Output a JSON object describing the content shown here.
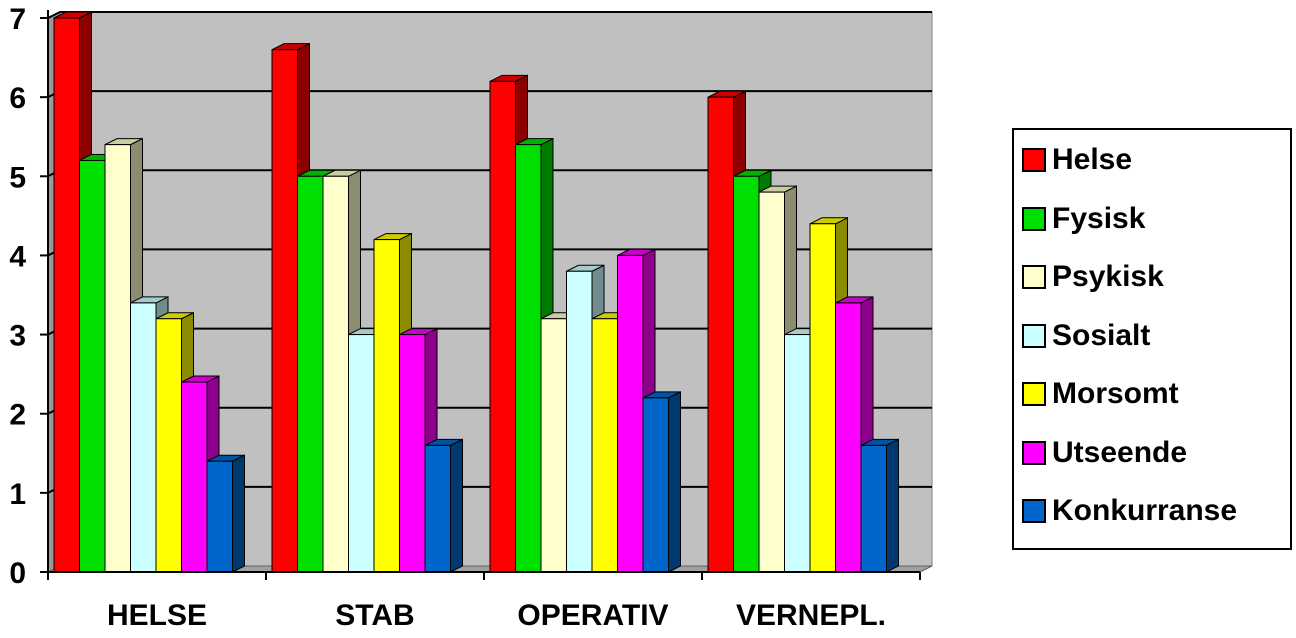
{
  "chart_data": {
    "type": "bar",
    "categories": [
      "HELSE",
      "STAB",
      "OPERATIV",
      "VERNEPL."
    ],
    "series": [
      {
        "name": "Helse",
        "values": [
          7.0,
          6.6,
          6.2,
          6.0
        ],
        "color": "#ff0000"
      },
      {
        "name": "Fysisk",
        "values": [
          5.2,
          5.0,
          5.4,
          5.0
        ],
        "color": "#00e000"
      },
      {
        "name": "Psykisk",
        "values": [
          5.4,
          5.0,
          3.2,
          4.8
        ],
        "color": "#ffffcc"
      },
      {
        "name": "Sosialt",
        "values": [
          3.4,
          3.0,
          3.8,
          3.0
        ],
        "color": "#ccffff"
      },
      {
        "name": "Morsomt",
        "values": [
          3.2,
          4.2,
          3.2,
          4.4
        ],
        "color": "#ffff00"
      },
      {
        "name": "Utseende",
        "values": [
          2.4,
          3.0,
          4.0,
          3.4
        ],
        "color": "#ff00ff"
      },
      {
        "name": "Konkurranse",
        "values": [
          1.4,
          1.6,
          2.2,
          1.6
        ],
        "color": "#0066cc"
      }
    ],
    "yticks": [
      0,
      1,
      2,
      3,
      4,
      5,
      6,
      7
    ],
    "ylim": [
      0,
      7
    ],
    "grid": true,
    "legend_position": "right",
    "title": "",
    "xlabel": "",
    "ylabel": ""
  }
}
